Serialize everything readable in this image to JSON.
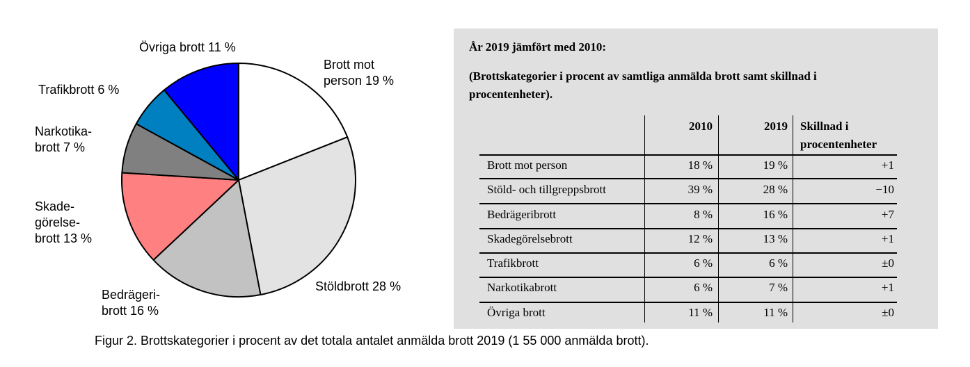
{
  "chart_data": {
    "type": "pie",
    "slices": [
      {
        "label": "Brott mot\nperson 19 %",
        "value": 19,
        "color": "#ffffff"
      },
      {
        "label": "Stöldbrott 28 %",
        "value": 28,
        "color": "#e3e3e3"
      },
      {
        "label": "Bedrägeri-\nbrott 16 %",
        "value": 16,
        "color": "#c2c2c2"
      },
      {
        "label": "Skade-\ngörelse-\nbrott 13 %",
        "value": 13,
        "color": "#ff8080"
      },
      {
        "label": "Narkotika-\nbrott 7 %",
        "value": 7,
        "color": "#808080"
      },
      {
        "label": "Trafikbrott 6 %",
        "value": 6,
        "color": "#0080c0"
      },
      {
        "label": "Övriga brott 11 %",
        "value": 11,
        "color": "#0000ff"
      }
    ]
  },
  "panel": {
    "title": "År 2019 jämfört med 2010:",
    "subtitle_line1": "(Brottskategorier i procent av samtliga anmälda brott samt skillnad i",
    "subtitle_line2": "procentenheter).",
    "table": {
      "headers": {
        "year1": "2010",
        "year2": "2019",
        "diff_line1": "Skillnad i",
        "diff_line2": "procentenheter"
      },
      "rows": [
        {
          "category": "Brott mot person",
          "y2010": "18 %",
          "y2019": "19 %",
          "diff": "+1"
        },
        {
          "category": "Stöld- och tillgreppsbrott",
          "y2010": "39 %",
          "y2019": "28 %",
          "diff": "−10"
        },
        {
          "category": "Bedrägeribrott",
          "y2010": "8 %",
          "y2019": "16 %",
          "diff": "+7"
        },
        {
          "category": "Skadegörelsebrott",
          "y2010": "12 %",
          "y2019": "13 %",
          "diff": "+1"
        },
        {
          "category": "Trafikbrott",
          "y2010": "6 %",
          "y2019": "6 %",
          "diff": "±0"
        },
        {
          "category": "Narkotikabrott",
          "y2010": "6 %",
          "y2019": "7 %",
          "diff": "+1"
        },
        {
          "category": "Övriga brott",
          "y2010": "11 %",
          "y2019": "11 %",
          "diff": "±0"
        }
      ]
    }
  },
  "caption": "Figur 2. Brottskategorier i procent av det totala antalet anmälda brott 2019 (1 55 000 anmälda brott)."
}
